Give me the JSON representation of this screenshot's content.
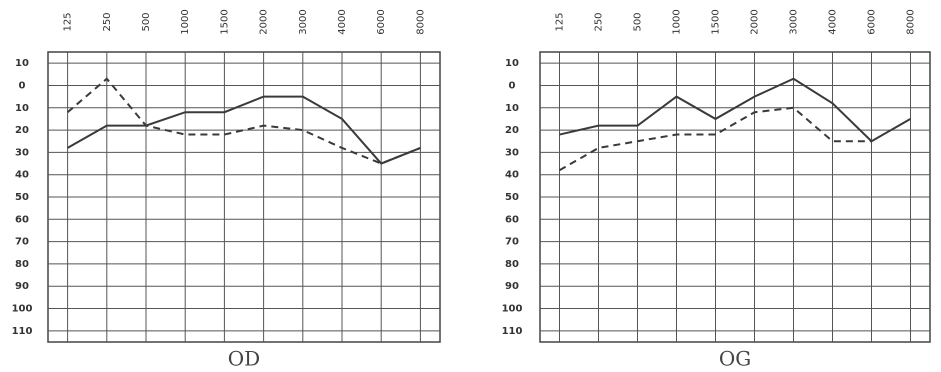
{
  "chart_data": [
    {
      "type": "line",
      "title": "OD",
      "categories": [
        "125",
        "250",
        "500",
        "1000",
        "1500",
        "2000",
        "3000",
        "4000",
        "6000",
        "8000"
      ],
      "series": [
        {
          "color": "#3a3a3a",
          "dash": false,
          "values": [
            28,
            18,
            18,
            12,
            12,
            5,
            5,
            15,
            35,
            28
          ]
        },
        {
          "color": "#3a3a3a",
          "dash": true,
          "values": [
            12,
            -3,
            18,
            22,
            22,
            18,
            20,
            28,
            35,
            28
          ]
        }
      ],
      "ylim": [
        -15,
        115
      ],
      "y_inverted": true,
      "yticks": [
        {
          "value": -10,
          "label": "10"
        },
        0,
        10,
        20,
        30,
        40,
        50,
        60,
        70,
        80,
        90,
        100,
        110
      ],
      "grid": true
    },
    {
      "type": "line",
      "title": "OG",
      "categories": [
        "125",
        "250",
        "500",
        "1000",
        "1500",
        "2000",
        "3000",
        "4000",
        "6000",
        "8000"
      ],
      "series": [
        {
          "color": "#3a3a3a",
          "dash": false,
          "values": [
            22,
            18,
            18,
            5,
            15,
            5,
            -3,
            8,
            25,
            15
          ]
        },
        {
          "color": "#3a3a3a",
          "dash": true,
          "values": [
            38,
            28,
            25,
            22,
            22,
            12,
            10,
            25,
            25,
            null
          ]
        }
      ],
      "ylim": [
        -15,
        115
      ],
      "y_inverted": true,
      "yticks": [
        {
          "value": -10,
          "label": "10"
        },
        0,
        10,
        20,
        30,
        40,
        50,
        60,
        70,
        80,
        90,
        100,
        110
      ],
      "grid": true
    }
  ]
}
